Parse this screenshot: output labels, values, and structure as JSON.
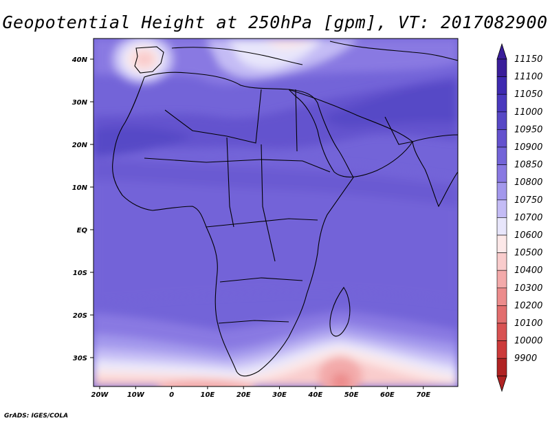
{
  "title": "Geopotential Height at 250hPa [gpm], VT: 2017082900",
  "credit": "GrADS: IGES/COLA",
  "map": {
    "lat_labels": [
      "40N",
      "30N",
      "20N",
      "10N",
      "EQ",
      "10S",
      "20S",
      "30S"
    ],
    "lon_labels": [
      "20W",
      "10W",
      "0",
      "10E",
      "20E",
      "30E",
      "40E",
      "50E",
      "60E",
      "70E"
    ]
  },
  "colorbar": {
    "levels": [
      "11150",
      "11100",
      "11050",
      "11000",
      "10950",
      "10900",
      "10850",
      "10800",
      "10750",
      "10700",
      "10600",
      "10500",
      "10400",
      "10300",
      "10200",
      "10100",
      "10000",
      "9900"
    ],
    "colors": [
      "#3a1e9a",
      "#3e2ab0",
      "#4a39be",
      "#5748c6",
      "#6452ce",
      "#7364d8",
      "#8979e2",
      "#a398ec",
      "#c4bcf5",
      "#e8e6fb",
      "#fce8e8",
      "#f9cccc",
      "#f3aaaa",
      "#ec8c8c",
      "#e26e6e",
      "#d85252",
      "#cc3a3a",
      "#b02323"
    ],
    "top_arrow_color": "#3a1e9a",
    "bottom_arrow_color": "#b02323"
  }
}
